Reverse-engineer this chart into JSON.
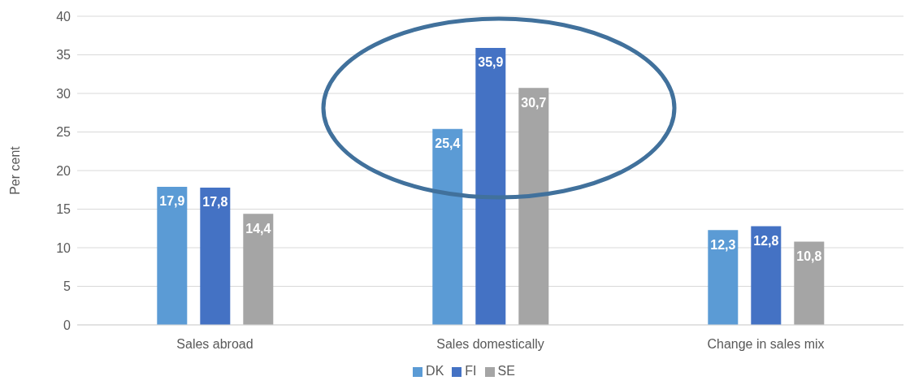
{
  "chart_data": {
    "type": "bar",
    "categories": [
      "Sales abroad",
      "Sales domestically",
      "Change in sales mix"
    ],
    "ylabel": "Per cent",
    "ylim": [
      0,
      40
    ],
    "yticks": [
      0,
      5,
      10,
      15,
      20,
      25,
      30,
      35,
      40
    ],
    "grid": "y",
    "legend": "bottom",
    "series": [
      {
        "name": "DK",
        "color": "#5b9bd5",
        "values": [
          17.9,
          25.4,
          12.3
        ],
        "value_labels": [
          "17,9",
          "25,4",
          "12,3"
        ]
      },
      {
        "name": "FI",
        "color": "#4472c4",
        "values": [
          17.8,
          35.9,
          12.8
        ],
        "value_labels": [
          "17,8",
          "35,9",
          "12,8"
        ]
      },
      {
        "name": "SE",
        "color": "#a5a5a5",
        "values": [
          14.4,
          30.7,
          10.8
        ],
        "value_labels": [
          "14,4",
          "30,7",
          "10,8"
        ]
      }
    ]
  }
}
